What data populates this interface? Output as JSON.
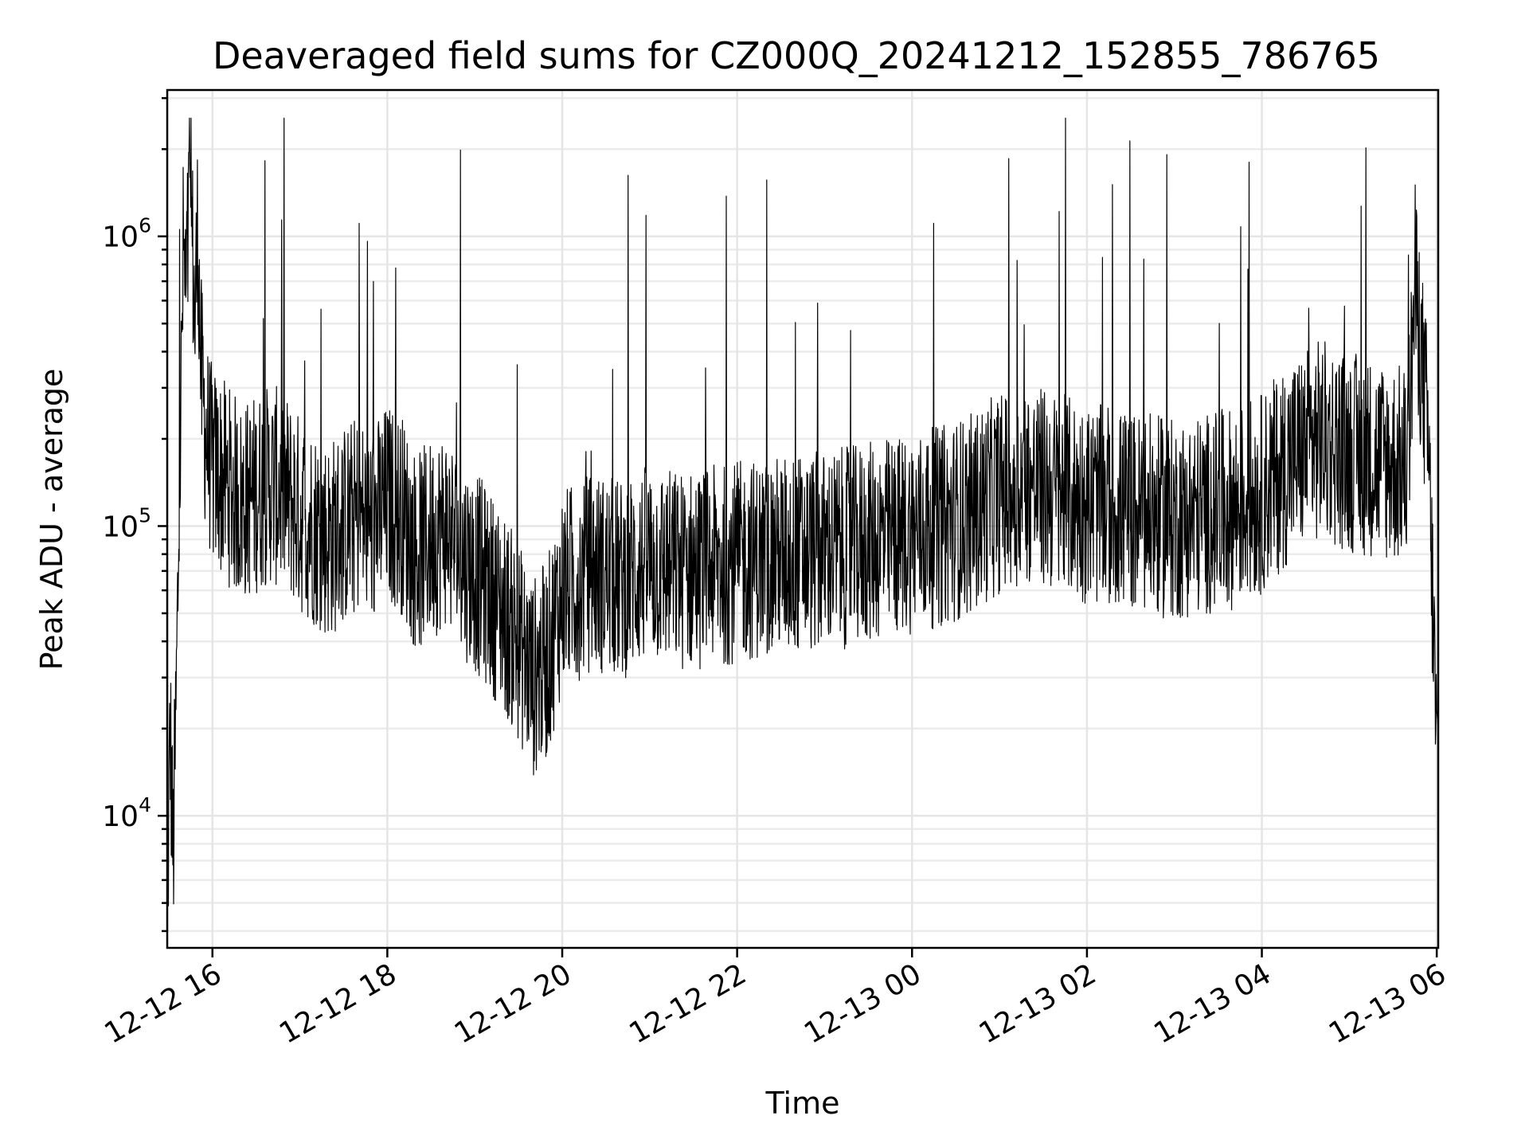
{
  "chart_data": {
    "type": "line",
    "title": "Deaveraged field sums for CZ000Q_20241212_152855_786765",
    "xlabel": "Time",
    "ylabel": "Peak ADU - average",
    "y_scale": "log",
    "xlim": [
      "2024-12-12 15:29",
      "2024-12-13 06:01"
    ],
    "ylim": [
      3500,
      3200000
    ],
    "x_ticks": [
      "12-12 16",
      "12-12 18",
      "12-12 20",
      "12-12 22",
      "12-13 00",
      "12-13 02",
      "12-13 04",
      "12-13 06"
    ],
    "y_ticks": [
      {
        "base": "10",
        "exp": "4"
      },
      {
        "base": "10",
        "exp": "5"
      },
      {
        "base": "10",
        "exp": "6"
      }
    ],
    "grid": true,
    "line_color": "#000000",
    "series": [
      {
        "x": [
          "2024-12-12 15:29",
          "2024-12-12 15:31",
          "2024-12-12 15:33",
          "2024-12-12 15:35",
          "2024-12-12 15:37",
          "2024-12-12 15:39",
          "2024-12-12 15:40",
          "2024-12-12 15:42",
          "2024-12-12 15:44",
          "2024-12-12 15:46",
          "2024-12-12 15:48",
          "2024-12-12 15:50",
          "2024-12-12 15:52",
          "2024-12-12 15:54",
          "2024-12-12 15:56",
          "2024-12-12 15:58",
          "2024-12-12 16:00",
          "2024-12-12 16:05",
          "2024-12-12 16:10",
          "2024-12-12 16:20",
          "2024-12-12 16:30",
          "2024-12-12 16:40",
          "2024-12-12 16:50",
          "2024-12-12 17:00",
          "2024-12-12 17:10",
          "2024-12-12 17:20",
          "2024-12-12 17:30",
          "2024-12-12 17:40",
          "2024-12-12 17:50",
          "2024-12-12 18:00",
          "2024-12-12 18:10",
          "2024-12-12 18:20",
          "2024-12-12 18:30",
          "2024-12-12 18:40",
          "2024-12-12 18:50",
          "2024-12-12 19:00",
          "2024-12-12 19:10",
          "2024-12-12 19:20",
          "2024-12-12 19:30",
          "2024-12-12 19:40",
          "2024-12-12 19:50",
          "2024-12-12 20:00",
          "2024-12-12 20:20",
          "2024-12-12 20:40",
          "2024-12-12 21:00",
          "2024-12-12 21:20",
          "2024-12-12 21:40",
          "2024-12-12 22:00",
          "2024-12-12 22:20",
          "2024-12-12 22:40",
          "2024-12-12 23:00",
          "2024-12-12 23:20",
          "2024-12-12 23:40",
          "2024-12-13 00:00",
          "2024-12-13 00:20",
          "2024-12-13 00:40",
          "2024-12-13 01:00",
          "2024-12-13 01:20",
          "2024-12-13 01:40",
          "2024-12-13 02:00",
          "2024-12-13 02:20",
          "2024-12-13 02:40",
          "2024-12-13 03:00",
          "2024-12-13 03:20",
          "2024-12-13 03:40",
          "2024-12-13 04:00",
          "2024-12-13 04:20",
          "2024-12-13 04:40",
          "2024-12-13 05:00",
          "2024-12-13 05:20",
          "2024-12-13 05:40",
          "2024-12-13 05:45",
          "2024-12-13 05:50",
          "2024-12-13 05:54",
          "2024-12-13 05:58",
          "2024-12-13 06:00"
        ],
        "y": [
          4500,
          20000,
          7000,
          22000,
          100000,
          400000,
          900000,
          600000,
          1200000,
          1000000,
          500000,
          1100000,
          350000,
          250000,
          200000,
          180000,
          160000,
          150000,
          140000,
          120000,
          130000,
          140000,
          130000,
          110000,
          100000,
          90000,
          100000,
          110000,
          100000,
          120000,
          110000,
          80000,
          90000,
          100000,
          80000,
          70000,
          60000,
          50000,
          40000,
          30000,
          35000,
          60000,
          70000,
          65000,
          75000,
          70000,
          72000,
          75000,
          78000,
          80000,
          82000,
          85000,
          90000,
          95000,
          100000,
          110000,
          130000,
          140000,
          130000,
          120000,
          115000,
          110000,
          105000,
          110000,
          115000,
          130000,
          170000,
          200000,
          180000,
          170000,
          160000,
          700000,
          350000,
          200000,
          40000,
          15000
        ]
      }
    ]
  }
}
